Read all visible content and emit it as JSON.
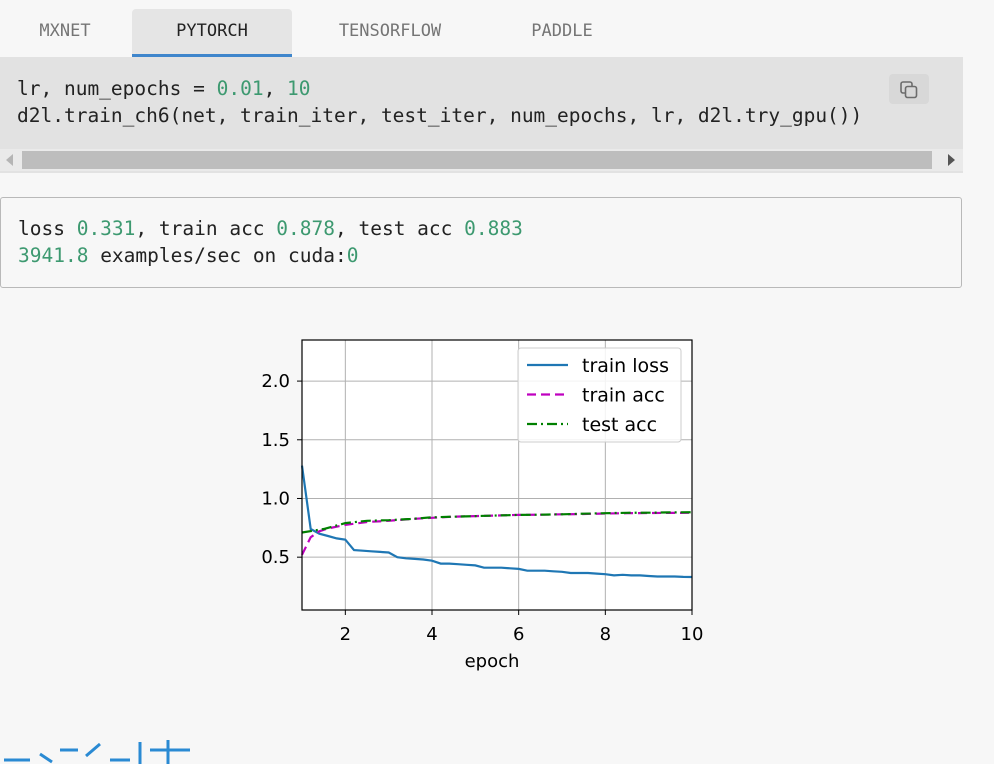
{
  "tabs": [
    {
      "label": "MXNET",
      "active": false
    },
    {
      "label": "PYTORCH",
      "active": true
    },
    {
      "label": "TENSORFLOW",
      "active": false
    },
    {
      "label": "PADDLE",
      "active": false
    }
  ],
  "code": {
    "line1": {
      "a": "lr, num_epochs = ",
      "b": "0.01",
      "c": ", ",
      "d": "10"
    },
    "line2": "d2l.train_ch6(net, train_iter, test_iter, num_epochs, lr, d2l.try_gpu())",
    "copy_icon": "copy-icon"
  },
  "output": {
    "line1": {
      "a": "loss ",
      "b": "0.331",
      "c": ", train acc ",
      "d": "0.878",
      "e": ", test acc ",
      "f": "0.883"
    },
    "line2": {
      "a": "3941.8",
      "b": " examples/sec on cuda:",
      "c": "0"
    }
  },
  "colors": {
    "accent": "#3f86cc",
    "number": "#3d9970",
    "train_loss": "#1f77b4",
    "train_acc": "#bf00bf",
    "test_acc": "#008000"
  },
  "chart_data": {
    "type": "line",
    "xlabel": "epoch",
    "ylabel": "",
    "xlim": [
      1,
      10
    ],
    "ylim": [
      0.05,
      2.35
    ],
    "xticks": [
      2,
      4,
      6,
      8,
      10
    ],
    "yticks": [
      0.5,
      1.0,
      1.5,
      2.0
    ],
    "xtick_labels": [
      "2",
      "4",
      "6",
      "8",
      "10"
    ],
    "ytick_labels": [
      "0.5",
      "1.0",
      "1.5",
      "2.0"
    ],
    "grid": true,
    "legend_position": "top-right",
    "series": [
      {
        "name": "train loss",
        "style": "solid",
        "color": "#1f77b4",
        "x": [
          1.0,
          1.2,
          1.4,
          1.6,
          1.8,
          2.0,
          2.2,
          2.4,
          2.6,
          2.8,
          3.0,
          3.2,
          3.4,
          3.6,
          3.8,
          4.0,
          4.2,
          4.4,
          4.6,
          4.8,
          5.0,
          5.2,
          5.4,
          5.6,
          5.8,
          6.0,
          6.2,
          6.4,
          6.6,
          6.8,
          7.0,
          7.2,
          7.4,
          7.6,
          7.8,
          8.0,
          8.2,
          8.4,
          8.6,
          8.8,
          9.0,
          9.2,
          9.4,
          9.6,
          9.8,
          10.0
        ],
        "y": [
          1.28,
          0.74,
          0.7,
          0.68,
          0.66,
          0.65,
          0.56,
          0.555,
          0.55,
          0.545,
          0.54,
          0.5,
          0.49,
          0.485,
          0.48,
          0.47,
          0.445,
          0.445,
          0.44,
          0.435,
          0.43,
          0.41,
          0.41,
          0.41,
          0.405,
          0.4,
          0.385,
          0.385,
          0.385,
          0.38,
          0.375,
          0.365,
          0.365,
          0.365,
          0.36,
          0.355,
          0.345,
          0.35,
          0.345,
          0.345,
          0.34,
          0.335,
          0.335,
          0.335,
          0.332,
          0.331
        ]
      },
      {
        "name": "train acc",
        "style": "dashed",
        "color": "#bf00bf",
        "x": [
          1.0,
          1.2,
          1.4,
          1.6,
          1.8,
          2.0,
          2.5,
          3.0,
          3.5,
          4.0,
          4.5,
          5.0,
          5.5,
          6.0,
          6.5,
          7.0,
          7.5,
          8.0,
          8.5,
          9.0,
          9.5,
          10.0
        ],
        "y": [
          0.52,
          0.67,
          0.72,
          0.745,
          0.76,
          0.775,
          0.8,
          0.81,
          0.825,
          0.835,
          0.845,
          0.85,
          0.855,
          0.86,
          0.862,
          0.865,
          0.868,
          0.872,
          0.875,
          0.876,
          0.877,
          0.878
        ]
      },
      {
        "name": "test acc",
        "style": "dashdot",
        "color": "#008000",
        "x": [
          1.0,
          1.5,
          2.0,
          2.5,
          3.0,
          3.5,
          4.0,
          4.5,
          5.0,
          5.5,
          6.0,
          6.5,
          7.0,
          7.5,
          8.0,
          8.5,
          9.0,
          9.5,
          10.0
        ],
        "y": [
          0.71,
          0.74,
          0.79,
          0.81,
          0.815,
          0.825,
          0.84,
          0.845,
          0.85,
          0.855,
          0.86,
          0.862,
          0.865,
          0.87,
          0.875,
          0.878,
          0.879,
          0.881,
          0.883
        ]
      }
    ]
  }
}
